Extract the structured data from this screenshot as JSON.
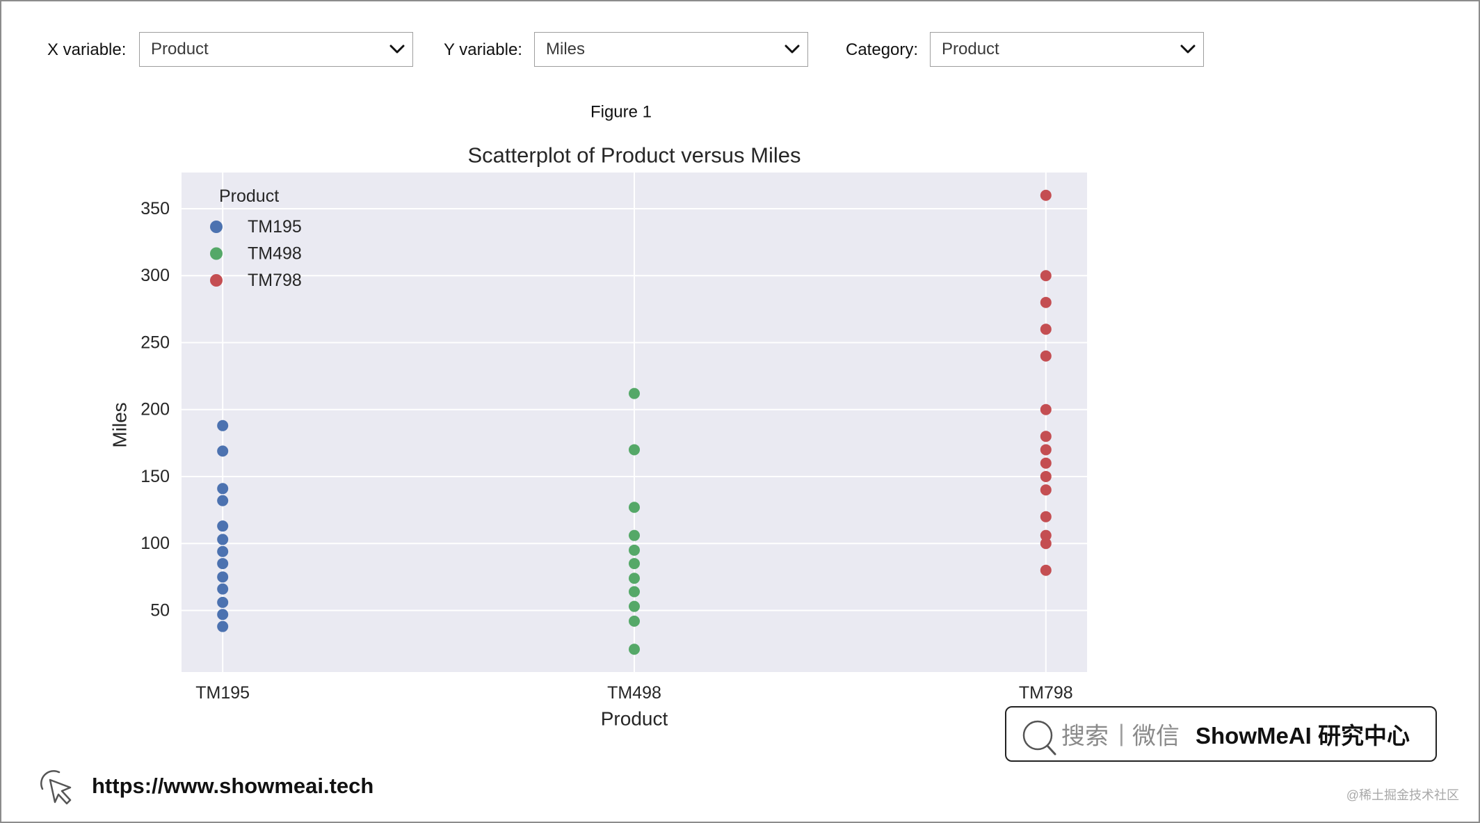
{
  "controls": {
    "x_variable": {
      "label": "X variable:",
      "value": "Product"
    },
    "y_variable": {
      "label": "Y variable:",
      "value": "Miles"
    },
    "category": {
      "label": "Category:",
      "value": "Product"
    }
  },
  "figure": {
    "label": "Figure 1"
  },
  "chart_data": {
    "type": "scatter",
    "title": "Scatterplot of Product versus Miles",
    "xlabel": "Product",
    "ylabel": "Miles",
    "categories": [
      "TM195",
      "TM498",
      "TM798"
    ],
    "yticks": [
      50,
      100,
      150,
      200,
      250,
      300,
      350
    ],
    "ylim": [
      4,
      377
    ],
    "grid": true,
    "legend": {
      "title": "Product",
      "placement": "top-left"
    },
    "series": [
      {
        "name": "TM195",
        "x": "TM195",
        "color": "#4c72b0",
        "values": [
          38,
          47,
          56,
          66,
          75,
          85,
          94,
          103,
          113,
          132,
          141,
          169,
          188
        ]
      },
      {
        "name": "TM498",
        "x": "TM498",
        "color": "#55a868",
        "values": [
          21,
          42,
          53,
          64,
          74,
          85,
          95,
          106,
          127,
          170,
          212
        ]
      },
      {
        "name": "TM798",
        "x": "TM798",
        "color": "#c44e52",
        "values": [
          80,
          100,
          106,
          120,
          140,
          150,
          160,
          170,
          180,
          200,
          240,
          260,
          280,
          300,
          360
        ]
      }
    ]
  },
  "footer": {
    "search_box": {
      "search_label": "搜索",
      "divider": "|",
      "wechat_label": "微信",
      "brand": "ShowMeAI 研究中心"
    },
    "url": "https://www.showmeai.tech",
    "watermark": "@稀土掘金技术社区"
  },
  "icons": {
    "dropdown": "chevron-down-icon",
    "search": "search-icon",
    "link": "cursor-click-icon"
  }
}
